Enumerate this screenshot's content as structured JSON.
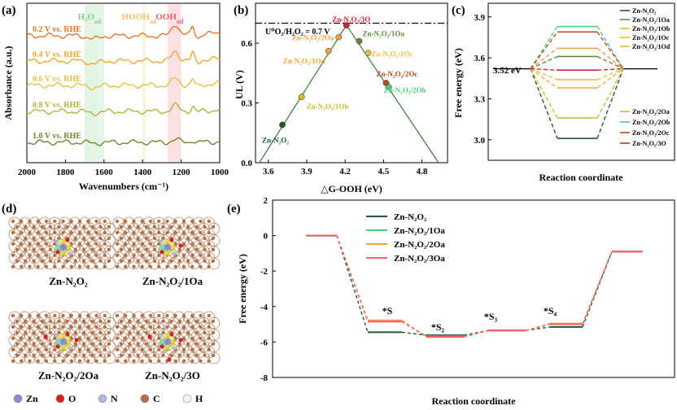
{
  "panel_labels": {
    "a": "(a)",
    "b": "(b)",
    "c": "(c)",
    "d": "(d)",
    "e": "(e)"
  },
  "chart_data": [
    {
      "id": "a",
      "type": "line",
      "xlabel": "Wavenumbers (cm⁻¹)",
      "ylabel": "Absorbance (a.u.)",
      "xlim": [
        2000,
        1000
      ],
      "xticks": [
        2000,
        1800,
        1600,
        1400,
        1200,
        1000
      ],
      "bands": [
        {
          "name": "H2Oad",
          "label": "H₂O",
          "sub": "ad",
          "range": [
            1700,
            1600
          ],
          "color": "#e3f5e4",
          "text_color": "#7fd08a"
        },
        {
          "name": "HOOHad",
          "label": "HOOH",
          "sub": "ad",
          "range": [
            1400,
            1385
          ],
          "color": "#fdf0dc",
          "text_color": "#f2c45d"
        },
        {
          "name": "OOHad",
          "label": "OOH",
          "sub": "ad",
          "range": [
            1270,
            1200
          ],
          "color": "#fde0e4",
          "text_color": "#f05a6a"
        }
      ],
      "series": [
        {
          "name": "0.2 V vs. RHE",
          "color": "#e8762a"
        },
        {
          "name": "0.4 V vs. RHE",
          "color": "#f0a830"
        },
        {
          "name": "0.6 V vs. RHE",
          "color": "#e6c040"
        },
        {
          "name": "0.8 V vs. RHE",
          "color": "#b6b03a"
        },
        {
          "name": "1.0 V vs. RHE",
          "color": "#6a8a2e"
        }
      ]
    },
    {
      "id": "b",
      "type": "scatter",
      "xlabel": "△G-OOH (eV)",
      "ylabel": "UL (V)",
      "xlim": [
        3.5,
        5.0
      ],
      "ylim": [
        0.0,
        0.8
      ],
      "xticks": [
        3.6,
        3.9,
        4.2,
        4.5,
        4.8
      ],
      "yticks": [
        0.0,
        0.3,
        0.6
      ],
      "reference_label": "U⁰O₂/H₂O₂ = 0.7 V",
      "reference_value": 0.7,
      "points": [
        {
          "label": "Zn-N₂O₂",
          "x": 3.71,
          "y": 0.19,
          "color": "#1e5c2e"
        },
        {
          "label": "Zn-N₂O₂/1Ob",
          "x": 3.86,
          "y": 0.33,
          "color": "#c8c030"
        },
        {
          "label": "Zn-N₂O₂/1Od",
          "x": 4.07,
          "y": 0.56,
          "color": "#e8a83a"
        },
        {
          "label": "Zn-N₂O₂/2Oa",
          "x": 4.15,
          "y": 0.63,
          "color": "#f0a040"
        },
        {
          "label": "Zn-N₂O₂/3O",
          "x": 4.21,
          "y": 0.69,
          "color": "#d8223a"
        },
        {
          "label": "Zn-N₂O₂/1Oa",
          "x": 4.31,
          "y": 0.61,
          "color": "#5a8a3a"
        },
        {
          "label": "Zn-N₂O₂/1Oc",
          "x": 4.38,
          "y": 0.55,
          "color": "#e8c040"
        },
        {
          "label": "Zn-N₂O₂/2Oc",
          "x": 4.52,
          "y": 0.4,
          "color": "#b84a20"
        },
        {
          "label": "Zn-N₂O₂/2Ob",
          "x": 4.54,
          "y": 0.38,
          "color": "#4ccc7a"
        }
      ]
    },
    {
      "id": "c",
      "type": "line",
      "xlabel": "Reaction coordinate",
      "ylabel": "Free energy (eV)",
      "ylim": [
        2.85,
        4.0
      ],
      "yticks": [
        3.0,
        3.3,
        3.6,
        3.9
      ],
      "annotation": "3.52 eV",
      "start_value": 3.52,
      "end_value": 3.52,
      "series": [
        {
          "name": "Zn-N₂O₂",
          "value": 3.01,
          "color": "#1e5c2e"
        },
        {
          "name": "Zn-N₂O₂/1Oa",
          "value": 3.61,
          "color": "#5a8a3a"
        },
        {
          "name": "Zn-N₂O₂/1Ob",
          "value": 3.16,
          "color": "#c8c030"
        },
        {
          "name": "Zn-N₂O₂/1Oc",
          "value": 3.44,
          "color": "#e8c040"
        },
        {
          "name": "Zn-N₂O₂/1Od",
          "value": 3.38,
          "color": "#f0b040"
        },
        {
          "name": "Zn-N₂O₂/2Oa",
          "value": 3.67,
          "color": "#f0a040"
        },
        {
          "name": "Zn-N₂O₂/2Ob",
          "value": 3.83,
          "color": "#4ccc7a"
        },
        {
          "name": "Zn-N₂O₂/2Oc",
          "value": 3.79,
          "color": "#b84a20"
        },
        {
          "name": "Zn-N₂O₂/3O",
          "value": 3.51,
          "color": "#d8223a"
        }
      ]
    },
    {
      "id": "e",
      "type": "line",
      "xlabel": "Reaction coordinate",
      "ylabel": "Free energy (eV)",
      "ylim": [
        -8,
        2
      ],
      "yticks": [
        -8,
        -6,
        -4,
        -2,
        0,
        2
      ],
      "step_labels": [
        "*S",
        "*S₂",
        "*S₃",
        "*S₄"
      ],
      "series": [
        {
          "name": "Zn-N₂O₂",
          "color": "#1e5c2e",
          "values": [
            0,
            -5.45,
            -5.62,
            -5.35,
            -5.15,
            -0.9
          ]
        },
        {
          "name": "Zn-N₂O₂/1Oa",
          "color": "#4ccc7a",
          "values": [
            0,
            -4.82,
            -5.68,
            -5.35,
            -4.98,
            -0.9
          ]
        },
        {
          "name": "Zn-N₂O₂/2Oa",
          "color": "#f0a040",
          "values": [
            0,
            -4.78,
            -5.72,
            -5.36,
            -4.96,
            -0.9
          ]
        },
        {
          "name": "Zn-N₂O₂/3Oa",
          "color": "#f06070",
          "values": [
            0,
            -4.85,
            -5.7,
            -5.35,
            -5.0,
            -0.9
          ]
        }
      ]
    }
  ],
  "structures": {
    "captions": [
      "Zn-N₂O₂",
      "Zn-N₂O₂/1Oa",
      "Zn-N₂O₂/2Oa",
      "Zn-N₂O₂/3O"
    ],
    "legend": [
      {
        "label": "Zn",
        "color": "#8a8ad0"
      },
      {
        "label": "O",
        "color": "#d82020"
      },
      {
        "label": "N",
        "color": "#b0b8e0"
      },
      {
        "label": "C",
        "color": "#b0704a"
      },
      {
        "label": "H",
        "color": "#f4f4f4"
      }
    ]
  }
}
